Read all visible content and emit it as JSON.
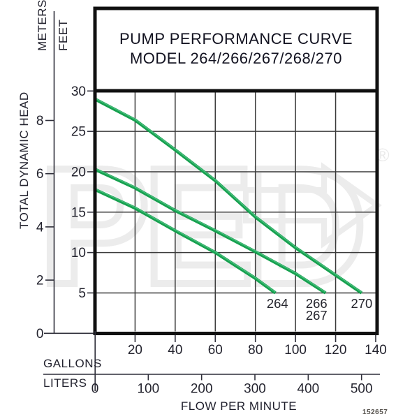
{
  "title": {
    "line1": "PUMP PERFORMANCE CURVE",
    "line2": "MODEL 264/266/267/268/270"
  },
  "y_axis": {
    "label": "TOTAL DYNAMIC HEAD",
    "meters_label": "METERS",
    "feet_label": "FEET"
  },
  "x_axis": {
    "gallons_label": "GALLONS",
    "liters_label": "LITERS",
    "flow_label": "FLOW PER MINUTE"
  },
  "footer": {
    "part_number": "152657"
  },
  "watermark": {
    "text": "PED",
    "registered": "®"
  },
  "colors": {
    "curve_green": "#16a14f",
    "curve_highlight": "#53c487",
    "grid": "#3b3b3b",
    "border": "#101010",
    "text": "#1e1e2b",
    "watermark": "#ececec"
  },
  "chart_data": {
    "type": "line",
    "title": "PUMP PERFORMANCE CURVE",
    "subtitle": "MODEL 264/266/267/268/270",
    "xlabel": "FLOW PER MINUTE",
    "ylabel": "TOTAL DYNAMIC HEAD",
    "grid": true,
    "x_gallons": {
      "label": "GALLONS",
      "ticks": [
        20,
        40,
        60,
        80,
        100,
        120,
        140
      ],
      "range": [
        0,
        140
      ]
    },
    "x_liters": {
      "label": "LITERS",
      "ticks": [
        0,
        100,
        200,
        300,
        400,
        500
      ],
      "range": [
        0,
        530
      ]
    },
    "y_feet": {
      "label": "FEET",
      "ticks": [
        30,
        25,
        20,
        15,
        10,
        5
      ],
      "zero_label": "0",
      "range": [
        0,
        30
      ]
    },
    "y_meters": {
      "label": "METERS",
      "ticks": [
        8,
        6,
        4,
        2,
        0
      ],
      "range": [
        0,
        9.1
      ]
    },
    "series": [
      {
        "model": "264",
        "label_lines": [
          "264"
        ],
        "label_gal": 91,
        "points_gpm_ft": [
          [
            0,
            17.8
          ],
          [
            20,
            15.5
          ],
          [
            40,
            12.7
          ],
          [
            60,
            10.0
          ],
          [
            80,
            6.8
          ],
          [
            90,
            5.0
          ]
        ]
      },
      {
        "model": "266/267",
        "label_lines": [
          "266",
          "267"
        ],
        "label_gal": 110.5,
        "points_gpm_ft": [
          [
            0,
            20.3
          ],
          [
            20,
            18.0
          ],
          [
            40,
            15.2
          ],
          [
            60,
            12.7
          ],
          [
            80,
            10.1
          ],
          [
            100,
            7.4
          ],
          [
            115,
            5.0
          ]
        ]
      },
      {
        "model": "270",
        "label_lines": [
          "270"
        ],
        "label_gal": 133,
        "points_gpm_ft": [
          [
            0,
            29.0
          ],
          [
            20,
            26.4
          ],
          [
            40,
            22.7
          ],
          [
            60,
            18.9
          ],
          [
            80,
            14.4
          ],
          [
            100,
            10.6
          ],
          [
            120,
            7.2
          ],
          [
            133,
            5.0
          ]
        ]
      }
    ]
  }
}
